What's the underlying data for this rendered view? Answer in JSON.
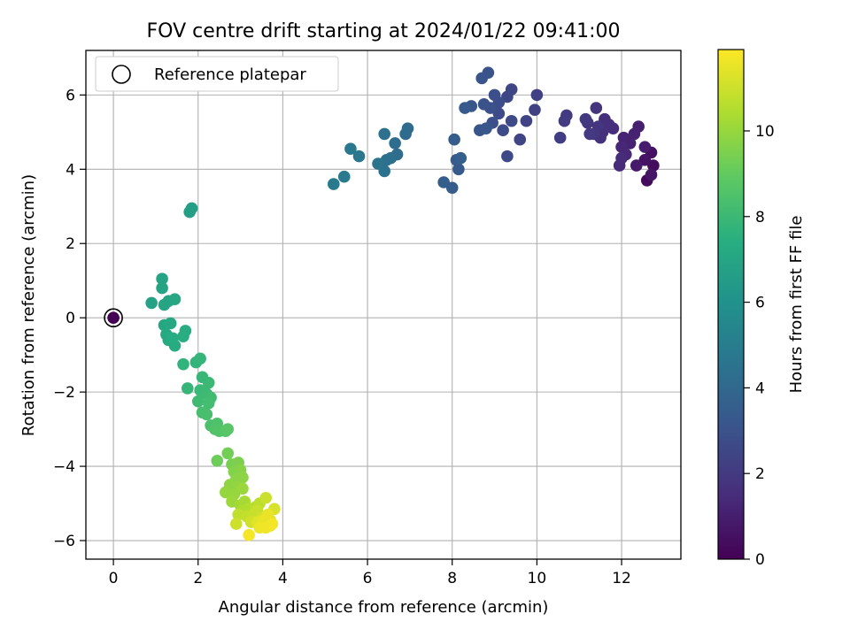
{
  "chart_data": {
    "type": "scatter",
    "title": "FOV centre drift starting at 2024/01/22 09:41:00",
    "xlabel": "Angular distance from reference (arcmin)",
    "ylabel": "Rotation from reference (arcmin)",
    "colorbar_label": "Hours from first FF file",
    "xlim": [
      -0.65,
      13.4
    ],
    "ylim": [
      -6.5,
      7.2
    ],
    "clim": [
      0,
      11.9
    ],
    "xticks": [
      0,
      2,
      4,
      6,
      8,
      10,
      12
    ],
    "yticks": [
      -6,
      -4,
      -2,
      0,
      2,
      4,
      6
    ],
    "cbar_ticks": [
      0,
      2,
      4,
      6,
      8,
      10
    ],
    "grid": true,
    "colormap": "viridis",
    "legend": {
      "location": "upper-left",
      "entries": [
        "Reference platepar"
      ]
    },
    "reference_point": {
      "x": 0,
      "y": 0,
      "label": "Reference platepar"
    },
    "points": [
      {
        "x": 0.0,
        "y": 0.0,
        "t": 0.0
      },
      {
        "x": 12.6,
        "y": 3.7,
        "t": 0.3
      },
      {
        "x": 12.75,
        "y": 4.1,
        "t": 0.4
      },
      {
        "x": 12.7,
        "y": 4.45,
        "t": 0.5
      },
      {
        "x": 12.55,
        "y": 4.25,
        "t": 0.6
      },
      {
        "x": 12.7,
        "y": 3.85,
        "t": 0.7
      },
      {
        "x": 12.35,
        "y": 4.1,
        "t": 0.8
      },
      {
        "x": 12.55,
        "y": 4.6,
        "t": 0.9
      },
      {
        "x": 12.4,
        "y": 5.15,
        "t": 1.0
      },
      {
        "x": 12.3,
        "y": 4.95,
        "t": 1.1
      },
      {
        "x": 12.2,
        "y": 4.7,
        "t": 1.15
      },
      {
        "x": 12.05,
        "y": 4.85,
        "t": 1.2
      },
      {
        "x": 12.0,
        "y": 4.6,
        "t": 1.3
      },
      {
        "x": 12.1,
        "y": 4.4,
        "t": 1.35
      },
      {
        "x": 11.95,
        "y": 4.1,
        "t": 1.4
      },
      {
        "x": 12.0,
        "y": 4.3,
        "t": 1.45
      },
      {
        "x": 11.8,
        "y": 5.1,
        "t": 1.5
      },
      {
        "x": 11.7,
        "y": 5.2,
        "t": 1.55
      },
      {
        "x": 11.6,
        "y": 5.35,
        "t": 1.6
      },
      {
        "x": 11.55,
        "y": 5.0,
        "t": 1.65
      },
      {
        "x": 11.5,
        "y": 4.85,
        "t": 1.7
      },
      {
        "x": 11.45,
        "y": 5.15,
        "t": 1.75
      },
      {
        "x": 11.4,
        "y": 5.65,
        "t": 1.8
      },
      {
        "x": 11.35,
        "y": 4.95,
        "t": 1.85
      },
      {
        "x": 11.2,
        "y": 5.25,
        "t": 1.9
      },
      {
        "x": 11.15,
        "y": 5.35,
        "t": 1.95
      },
      {
        "x": 11.25,
        "y": 4.95,
        "t": 2.0
      },
      {
        "x": 10.7,
        "y": 5.45,
        "t": 2.05
      },
      {
        "x": 10.65,
        "y": 5.3,
        "t": 2.1
      },
      {
        "x": 10.55,
        "y": 4.85,
        "t": 2.15
      },
      {
        "x": 10.0,
        "y": 6.0,
        "t": 2.3
      },
      {
        "x": 9.95,
        "y": 5.6,
        "t": 2.35
      },
      {
        "x": 9.75,
        "y": 5.3,
        "t": 2.4
      },
      {
        "x": 9.6,
        "y": 4.8,
        "t": 2.45
      },
      {
        "x": 9.4,
        "y": 6.15,
        "t": 2.5
      },
      {
        "x": 9.3,
        "y": 5.95,
        "t": 2.55
      },
      {
        "x": 9.4,
        "y": 5.3,
        "t": 2.6
      },
      {
        "x": 9.3,
        "y": 4.35,
        "t": 2.65
      },
      {
        "x": 9.2,
        "y": 5.05,
        "t": 2.7
      },
      {
        "x": 9.1,
        "y": 5.5,
        "t": 2.75
      },
      {
        "x": 9.1,
        "y": 5.8,
        "t": 2.8
      },
      {
        "x": 9.0,
        "y": 6.0,
        "t": 2.85
      },
      {
        "x": 8.95,
        "y": 5.25,
        "t": 2.9
      },
      {
        "x": 8.9,
        "y": 5.65,
        "t": 2.95
      },
      {
        "x": 8.85,
        "y": 6.6,
        "t": 3.0
      },
      {
        "x": 8.75,
        "y": 5.75,
        "t": 3.05
      },
      {
        "x": 8.7,
        "y": 6.45,
        "t": 3.1
      },
      {
        "x": 8.65,
        "y": 5.05,
        "t": 3.15
      },
      {
        "x": 8.8,
        "y": 5.1,
        "t": 3.2
      },
      {
        "x": 8.45,
        "y": 5.7,
        "t": 3.25
      },
      {
        "x": 8.3,
        "y": 5.65,
        "t": 3.3
      },
      {
        "x": 8.15,
        "y": 4.0,
        "t": 3.35
      },
      {
        "x": 8.1,
        "y": 4.25,
        "t": 3.4
      },
      {
        "x": 8.05,
        "y": 4.8,
        "t": 3.45
      },
      {
        "x": 8.0,
        "y": 3.5,
        "t": 3.5
      },
      {
        "x": 7.8,
        "y": 3.65,
        "t": 3.55
      },
      {
        "x": 8.2,
        "y": 4.3,
        "t": 3.6
      },
      {
        "x": 6.95,
        "y": 5.1,
        "t": 4.1
      },
      {
        "x": 6.9,
        "y": 4.95,
        "t": 4.15
      },
      {
        "x": 6.7,
        "y": 4.4,
        "t": 4.2
      },
      {
        "x": 6.65,
        "y": 4.7,
        "t": 4.25
      },
      {
        "x": 6.55,
        "y": 4.3,
        "t": 4.3
      },
      {
        "x": 6.45,
        "y": 4.25,
        "t": 4.35
      },
      {
        "x": 6.4,
        "y": 4.95,
        "t": 4.4
      },
      {
        "x": 6.4,
        "y": 3.95,
        "t": 4.45
      },
      {
        "x": 6.25,
        "y": 4.15,
        "t": 4.5
      },
      {
        "x": 5.8,
        "y": 4.35,
        "t": 4.7
      },
      {
        "x": 5.6,
        "y": 4.55,
        "t": 4.75
      },
      {
        "x": 5.45,
        "y": 3.8,
        "t": 4.8
      },
      {
        "x": 5.2,
        "y": 3.6,
        "t": 4.85
      },
      {
        "x": 1.85,
        "y": 2.95,
        "t": 6.6
      },
      {
        "x": 1.8,
        "y": 2.85,
        "t": 6.65
      },
      {
        "x": 0.9,
        "y": 0.4,
        "t": 6.8
      },
      {
        "x": 1.15,
        "y": 1.05,
        "t": 6.85
      },
      {
        "x": 1.15,
        "y": 0.8,
        "t": 6.9
      },
      {
        "x": 1.2,
        "y": 0.35,
        "t": 6.95
      },
      {
        "x": 1.3,
        "y": 0.45,
        "t": 7.0
      },
      {
        "x": 1.45,
        "y": 0.5,
        "t": 7.05
      },
      {
        "x": 1.2,
        "y": -0.2,
        "t": 7.1
      },
      {
        "x": 1.35,
        "y": -0.15,
        "t": 7.15
      },
      {
        "x": 1.25,
        "y": -0.45,
        "t": 7.2
      },
      {
        "x": 1.3,
        "y": -0.6,
        "t": 7.25
      },
      {
        "x": 1.45,
        "y": -0.75,
        "t": 7.3
      },
      {
        "x": 1.4,
        "y": -0.55,
        "t": 7.35
      },
      {
        "x": 1.7,
        "y": -0.35,
        "t": 7.4
      },
      {
        "x": 1.65,
        "y": -0.5,
        "t": 7.45
      },
      {
        "x": 1.65,
        "y": -1.25,
        "t": 7.7
      },
      {
        "x": 1.95,
        "y": -1.2,
        "t": 7.75
      },
      {
        "x": 2.05,
        "y": -1.1,
        "t": 7.8
      },
      {
        "x": 1.75,
        "y": -1.9,
        "t": 7.85
      },
      {
        "x": 2.1,
        "y": -1.6,
        "t": 7.9
      },
      {
        "x": 2.05,
        "y": -1.95,
        "t": 7.95
      },
      {
        "x": 2.25,
        "y": -1.75,
        "t": 8.0
      },
      {
        "x": 2.2,
        "y": -2.05,
        "t": 8.05
      },
      {
        "x": 2.0,
        "y": -2.25,
        "t": 8.1
      },
      {
        "x": 2.3,
        "y": -2.15,
        "t": 8.15
      },
      {
        "x": 2.25,
        "y": -2.3,
        "t": 8.2
      },
      {
        "x": 2.1,
        "y": -2.55,
        "t": 8.3
      },
      {
        "x": 2.2,
        "y": -2.6,
        "t": 8.35
      },
      {
        "x": 2.3,
        "y": -2.9,
        "t": 8.4
      },
      {
        "x": 2.45,
        "y": -2.85,
        "t": 8.5
      },
      {
        "x": 2.4,
        "y": -3.0,
        "t": 8.55
      },
      {
        "x": 2.5,
        "y": -3.05,
        "t": 8.6
      },
      {
        "x": 2.65,
        "y": -3.05,
        "t": 8.7
      },
      {
        "x": 2.7,
        "y": -3.0,
        "t": 8.75
      },
      {
        "x": 2.45,
        "y": -3.85,
        "t": 9.2
      },
      {
        "x": 2.7,
        "y": -3.65,
        "t": 9.3
      },
      {
        "x": 2.8,
        "y": -3.95,
        "t": 9.4
      },
      {
        "x": 2.95,
        "y": -3.9,
        "t": 9.5
      },
      {
        "x": 2.85,
        "y": -4.15,
        "t": 9.6
      },
      {
        "x": 3.0,
        "y": -4.1,
        "t": 9.7
      },
      {
        "x": 2.9,
        "y": -4.35,
        "t": 9.75
      },
      {
        "x": 3.05,
        "y": -4.3,
        "t": 9.8
      },
      {
        "x": 2.75,
        "y": -4.5,
        "t": 9.85
      },
      {
        "x": 2.95,
        "y": -4.55,
        "t": 9.9
      },
      {
        "x": 2.65,
        "y": -4.7,
        "t": 9.95
      },
      {
        "x": 2.85,
        "y": -4.75,
        "t": 10.0
      },
      {
        "x": 3.05,
        "y": -4.6,
        "t": 10.05
      },
      {
        "x": 2.8,
        "y": -4.95,
        "t": 10.1
      },
      {
        "x": 3.0,
        "y": -5.05,
        "t": 10.2
      },
      {
        "x": 3.1,
        "y": -4.95,
        "t": 10.3
      },
      {
        "x": 3.05,
        "y": -5.2,
        "t": 10.4
      },
      {
        "x": 3.2,
        "y": -5.15,
        "t": 10.5
      },
      {
        "x": 3.35,
        "y": -5.1,
        "t": 10.6
      },
      {
        "x": 3.45,
        "y": -5.0,
        "t": 10.7
      },
      {
        "x": 2.95,
        "y": -5.3,
        "t": 10.75
      },
      {
        "x": 3.15,
        "y": -5.35,
        "t": 10.8
      },
      {
        "x": 3.3,
        "y": -5.3,
        "t": 10.85
      },
      {
        "x": 3.4,
        "y": -5.2,
        "t": 10.9
      },
      {
        "x": 3.6,
        "y": -4.85,
        "t": 10.95
      },
      {
        "x": 2.9,
        "y": -5.55,
        "t": 11.0
      },
      {
        "x": 3.25,
        "y": -5.5,
        "t": 11.05
      },
      {
        "x": 3.5,
        "y": -5.4,
        "t": 11.1
      },
      {
        "x": 3.6,
        "y": -5.35,
        "t": 11.15
      },
      {
        "x": 3.8,
        "y": -5.15,
        "t": 11.2
      },
      {
        "x": 3.7,
        "y": -5.45,
        "t": 11.25
      },
      {
        "x": 3.5,
        "y": -5.6,
        "t": 11.3
      },
      {
        "x": 3.4,
        "y": -5.5,
        "t": 11.35
      },
      {
        "x": 3.6,
        "y": -5.55,
        "t": 11.4
      },
      {
        "x": 3.7,
        "y": -5.6,
        "t": 11.45
      },
      {
        "x": 3.55,
        "y": -5.45,
        "t": 11.5
      },
      {
        "x": 3.65,
        "y": -5.3,
        "t": 11.55
      },
      {
        "x": 3.45,
        "y": -5.65,
        "t": 11.6
      },
      {
        "x": 3.6,
        "y": -5.65,
        "t": 11.65
      },
      {
        "x": 3.75,
        "y": -5.55,
        "t": 11.7
      },
      {
        "x": 3.2,
        "y": -5.85,
        "t": 11.75
      }
    ]
  }
}
